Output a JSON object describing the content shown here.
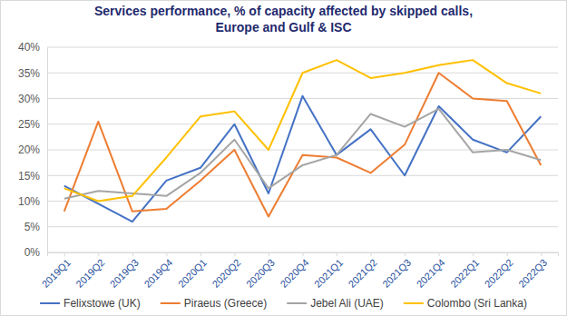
{
  "chart_data": {
    "type": "line",
    "title": "Services performance, % of capacity affected by skipped calls,\nEurope and Gulf & ISC",
    "categories": [
      "2019Q1",
      "2019Q2",
      "2019Q3",
      "2019Q4",
      "2020Q1",
      "2020Q2",
      "2020Q3",
      "2020Q4",
      "2021Q1",
      "2021Q2",
      "2021Q3",
      "2021Q4",
      "2022Q1",
      "2022Q2",
      "2022Q3"
    ],
    "series": [
      {
        "name": "Felixstowe (UK)",
        "color": "#4472c4",
        "values": [
          13,
          9.5,
          6,
          14,
          16.5,
          25,
          11.5,
          30.5,
          19,
          24,
          15,
          28.5,
          22,
          19.5,
          26.5
        ]
      },
      {
        "name": "Piraeus (Greece)",
        "color": "#ed7d31",
        "values": [
          8,
          25.5,
          8,
          8.5,
          14,
          20,
          7,
          19,
          18.5,
          15.5,
          21,
          35,
          30,
          29.5,
          17
        ]
      },
      {
        "name": "Jebel Ali (UAE)",
        "color": "#a5a5a5",
        "values": [
          10.5,
          12,
          11.5,
          11,
          15.5,
          22,
          12.5,
          17,
          19,
          27,
          24.5,
          28,
          19.5,
          20,
          18
        ]
      },
      {
        "name": "Colombo (Sri Lanka)",
        "color": "#ffc000",
        "values": [
          12.5,
          10,
          11,
          18.5,
          26.5,
          27.5,
          20,
          35,
          37.5,
          34,
          35,
          36.5,
          37.5,
          33,
          31
        ]
      }
    ],
    "ylim": [
      0,
      40
    ],
    "yticks": [
      {
        "value": 0,
        "label": "0%"
      },
      {
        "value": 5,
        "label": "5%"
      },
      {
        "value": 10,
        "label": "10%"
      },
      {
        "value": 15,
        "label": "15%"
      },
      {
        "value": 20,
        "label": "20%"
      },
      {
        "value": 25,
        "label": "25%"
      },
      {
        "value": 30,
        "label": "30%"
      },
      {
        "value": 35,
        "label": "35%"
      },
      {
        "value": 40,
        "label": "40%"
      }
    ],
    "grid": true,
    "legend": "bottom"
  }
}
